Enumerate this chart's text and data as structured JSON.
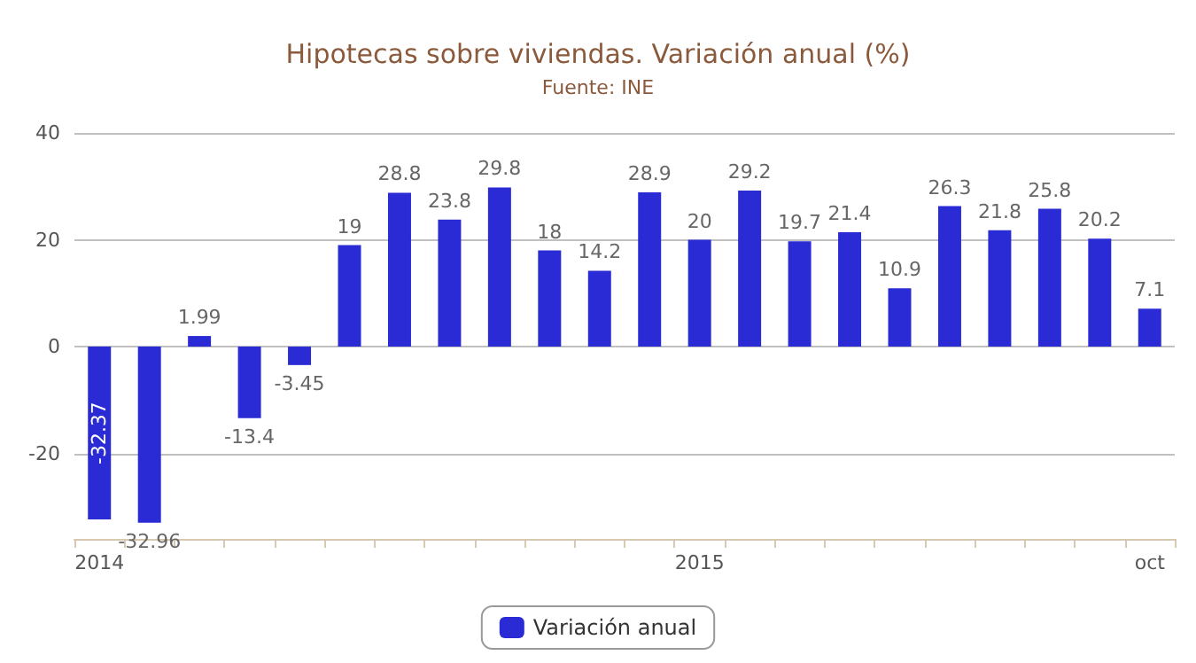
{
  "chart_data": {
    "type": "bar",
    "title": "Hipotecas sobre viviendas. Variación anual (%)",
    "subtitle": "Fuente: INE",
    "categories": [
      "2014",
      null,
      null,
      null,
      null,
      null,
      null,
      null,
      null,
      null,
      null,
      null,
      "2015",
      null,
      null,
      null,
      null,
      null,
      null,
      null,
      null,
      "oct"
    ],
    "series": [
      {
        "name": "Variación anual",
        "color": "#2b2bd6",
        "values": [
          -32.37,
          -32.96,
          1.99,
          -13.4,
          -3.45,
          19,
          28.8,
          23.8,
          29.8,
          18,
          14.2,
          28.9,
          20,
          29.2,
          19.7,
          21.4,
          10.9,
          26.3,
          21.8,
          25.8,
          20.2,
          7.1
        ]
      }
    ],
    "ylim": [
      -36,
      40
    ],
    "yticks": [
      -20,
      0,
      20,
      40
    ],
    "grid": "y",
    "legend": "bottom",
    "data_labels": true
  }
}
